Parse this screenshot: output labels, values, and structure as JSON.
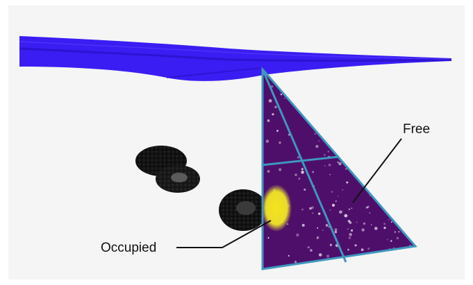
{
  "annotations": {
    "free_label": "Free",
    "occupied_label": "Occupied"
  },
  "colors": {
    "background": "#f4f5f4",
    "blade": "#3a1df2",
    "blade_dark": "#2a12c8",
    "frustum_fill": "#4e0f6b",
    "frustum_outline": "#3f97bf",
    "occupied": "#f2e21a",
    "obstacle": "#0e0e0e"
  }
}
